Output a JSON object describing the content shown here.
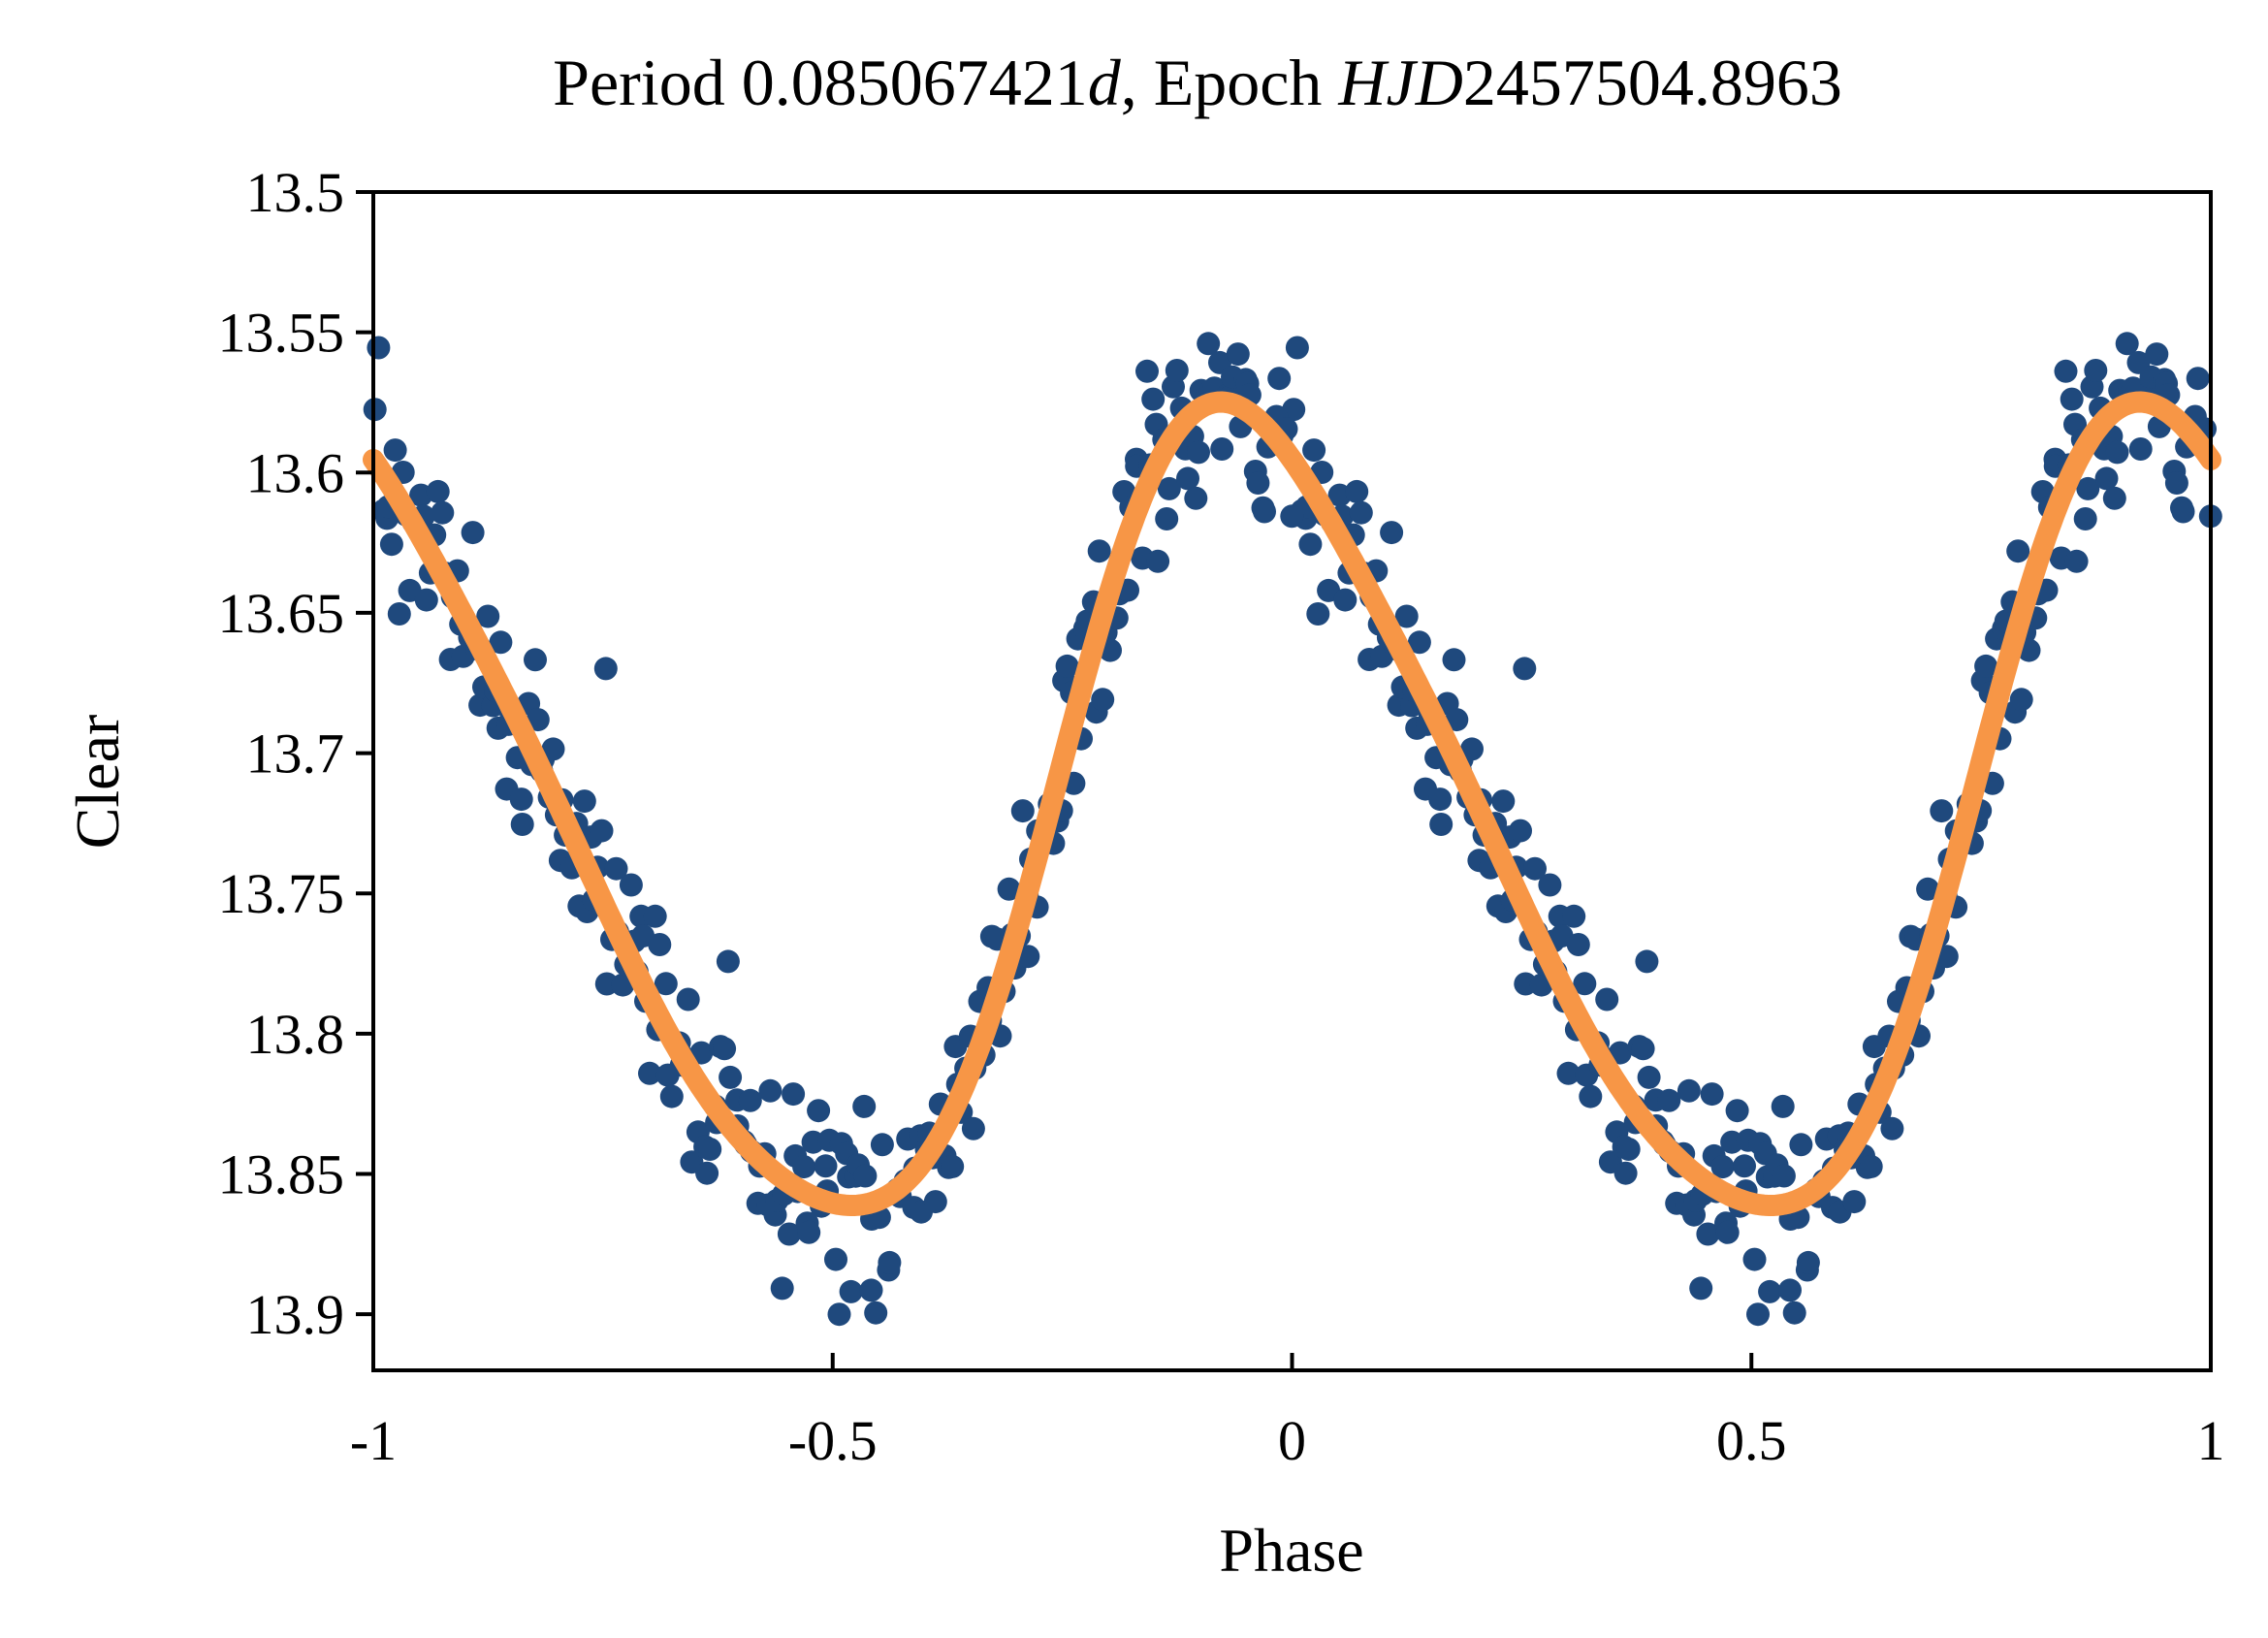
{
  "chart_data": {
    "type": "scatter",
    "title": {
      "prefix": "Period 0.085067421",
      "unit": "d",
      "middle": ", Epoch ",
      "epoch_system": "HJD",
      "epoch_value": "2457504.8963"
    },
    "xlabel": "Phase",
    "ylabel": "Clear",
    "xlim": [
      -1,
      1
    ],
    "ylim": [
      13.5,
      13.92
    ],
    "y_inverted": true,
    "grid": false,
    "legend": "none",
    "x_ticks": [
      {
        "value": -1,
        "label": "-1"
      },
      {
        "value": -0.5,
        "label": "-0.5"
      },
      {
        "value": 0,
        "label": "0"
      },
      {
        "value": 0.5,
        "label": "0.5"
      },
      {
        "value": 1,
        "label": "1"
      }
    ],
    "y_ticks": [
      {
        "value": 13.5,
        "label": "13.5"
      },
      {
        "value": 13.55,
        "label": "13.55"
      },
      {
        "value": 13.6,
        "label": "13.6"
      },
      {
        "value": 13.65,
        "label": "13.65"
      },
      {
        "value": 13.7,
        "label": "13.7"
      },
      {
        "value": 13.75,
        "label": "13.75"
      },
      {
        "value": 13.8,
        "label": "13.8"
      },
      {
        "value": 13.85,
        "label": "13.85"
      },
      {
        "value": 13.9,
        "label": "13.9"
      }
    ],
    "series": [
      {
        "name": "observations",
        "kind": "scatter",
        "color": "#1F497D",
        "points_per_cycle": 260,
        "scatter_amplitude": 0.018,
        "phase_offset": 0.63,
        "repeats": [
          0,
          -1
        ]
      },
      {
        "name": "fit",
        "kind": "line",
        "color": "#F79646",
        "model": {
          "mean": 13.728,
          "terms": [
            {
              "harmonic": 1,
              "cos": -0.1381,
              "sin": 0.0263
            },
            {
              "harmonic": 2,
              "cos": -0.0001,
              "sin": 0.0216
            },
            {
              "harmonic": 3,
              "cos": 0.0056,
              "sin": 0.0015
            }
          ]
        },
        "key_points": [
          {
            "x": -1.0,
            "y": 13.57
          },
          {
            "x": -0.97,
            "y": 13.563
          },
          {
            "x": -0.8,
            "y": 13.68
          },
          {
            "x": -0.6,
            "y": 13.78
          },
          {
            "x": -0.34,
            "y": 13.87
          },
          {
            "x": -0.15,
            "y": 13.69
          },
          {
            "x": 0.03,
            "y": 13.563
          },
          {
            "x": 0.2,
            "y": 13.68
          },
          {
            "x": 0.4,
            "y": 13.78
          },
          {
            "x": 0.66,
            "y": 13.87
          },
          {
            "x": 0.85,
            "y": 13.69
          },
          {
            "x": 1.0,
            "y": 13.57
          }
        ]
      }
    ]
  }
}
